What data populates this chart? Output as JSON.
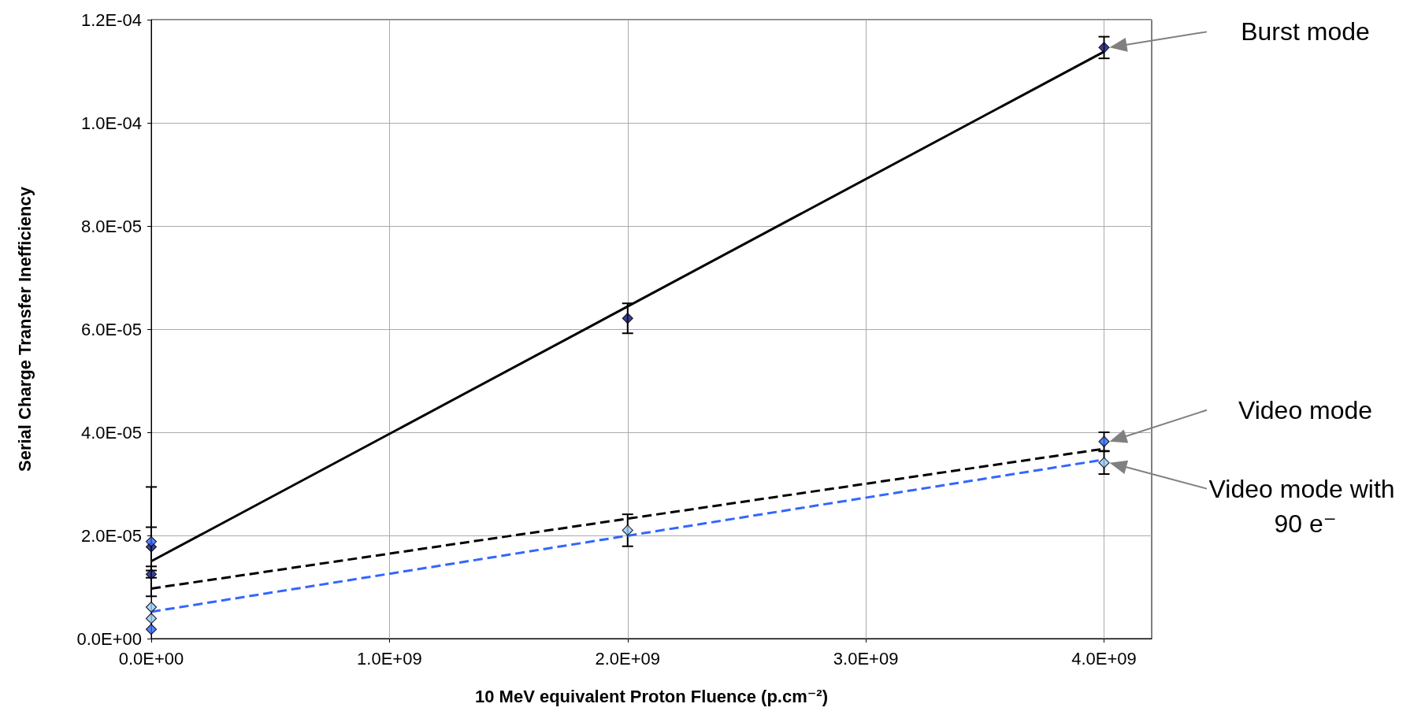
{
  "chart_data": {
    "type": "scatter",
    "xlabel": "10 MeV equivalent Proton Fluence (p.cm⁻²)",
    "ylabel": "Serial Charge Transfer Inefficiency",
    "xlim": [
      0,
      4200000000
    ],
    "xticks": [
      {
        "value": 0,
        "label": "0.0E+00"
      },
      {
        "value": 1000000000,
        "label": "1.0E+09"
      },
      {
        "value": 2000000000,
        "label": "2.0E+09"
      },
      {
        "value": 3000000000,
        "label": "3.0E+09"
      },
      {
        "value": 4000000000,
        "label": "4.0E+09"
      }
    ],
    "ylim": [
      0,
      0.00012
    ],
    "yticks": [
      {
        "value": 0,
        "label": "0.0E+00"
      },
      {
        "value": 2e-05,
        "label": "2.0E-05"
      },
      {
        "value": 4e-05,
        "label": "4.0E-05"
      },
      {
        "value": 6e-05,
        "label": "6.0E-05"
      },
      {
        "value": 8e-05,
        "label": "8.0E-05"
      },
      {
        "value": 0.0001,
        "label": "1.0E-04"
      },
      {
        "value": 0.00012,
        "label": "1.2E-04"
      }
    ],
    "grid": true,
    "series": [
      {
        "color": "#0b1470",
        "marker": "diamond",
        "x": [
          0,
          0,
          2000000000,
          4000000000
        ],
        "values": [
          1.78e-05,
          1.25e-05,
          6.21e-05,
          0.0001146
        ],
        "errors": [
          3.8e-06,
          7e-07,
          2.9e-06,
          2.1e-06
        ]
      },
      {
        "color": "#3366ff",
        "marker": "diamond",
        "x": [
          0,
          0,
          2000000000,
          4000000000
        ],
        "values": [
          1.88e-05,
          1.8e-06,
          null,
          3.82e-05
        ],
        "errors": [
          1.06e-05,
          null,
          null,
          1.8e-06
        ]
      },
      {
        "color": "#99ccff",
        "marker": "diamond",
        "x": [
          0,
          0,
          2000000000,
          4000000000
        ],
        "values": [
          6.1e-06,
          3.9e-06,
          2.1e-05,
          3.41e-05
        ],
        "errors": [
          null,
          null,
          3.1e-06,
          2.2e-06
        ]
      },
      {
        "type": "line",
        "color": "#000000",
        "marker": "none",
        "line_style": "solid",
        "x": [
          0,
          4000000000
        ],
        "values": [
          1.5e-05,
          0.0001138
        ]
      },
      {
        "type": "line",
        "color": "#000000",
        "marker": "none",
        "line_style": "dashed",
        "x": [
          0,
          4000000000
        ],
        "values": [
          9.7e-06,
          3.68e-05
        ]
      },
      {
        "type": "line",
        "color": "#3366ff",
        "marker": "none",
        "line_style": "dashed",
        "x": [
          0,
          4000000000
        ],
        "values": [
          5.2e-06,
          3.47e-05
        ]
      }
    ],
    "annotations": [
      "Burst mode",
      "Video mode",
      "Video mode with 90 e⁻"
    ]
  }
}
